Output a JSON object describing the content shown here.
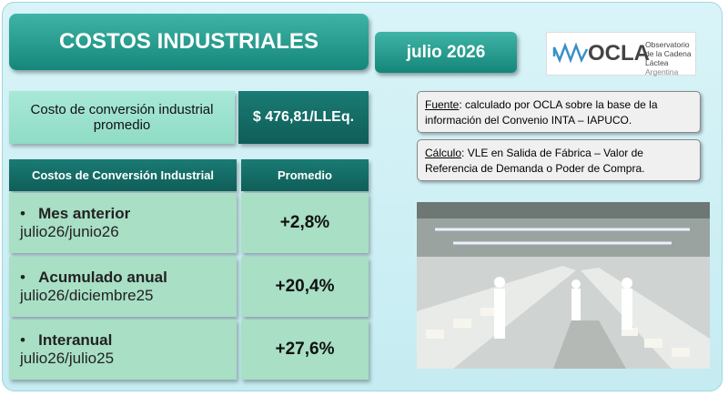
{
  "header": {
    "title": "COSTOS INDUSTRIALES",
    "period": "julio 2026"
  },
  "logo": {
    "name": "OCLA",
    "line1": "Observatorio",
    "line2": "de la Cadena Láctea",
    "line3": "Argentina"
  },
  "summary": {
    "label": "Costo de conversión industrial promedio",
    "value": "$ 476,81/LLEq."
  },
  "table": {
    "headers": [
      "Costos de Conversión Industrial",
      "Promedio"
    ],
    "rows": [
      {
        "title": "Mes anterior",
        "subtitle": "julio26/junio26",
        "value": "+2,8%"
      },
      {
        "title": "Acumulado anual",
        "subtitle": "julio26/diciembre25",
        "value": "+20,4%"
      },
      {
        "title": "Interanual",
        "subtitle": "julio26/julio25",
        "value": "+27,6%"
      }
    ]
  },
  "notes": [
    {
      "label": "Fuente",
      "text": ": calculado por OCLA sobre la base de la información del Convenio INTA – IAPUCO."
    },
    {
      "label": "Cálculo",
      "text": ": VLE en Salida de Fábrica – Valor de Referencia de Demanda o Poder de Compra."
    }
  ]
}
